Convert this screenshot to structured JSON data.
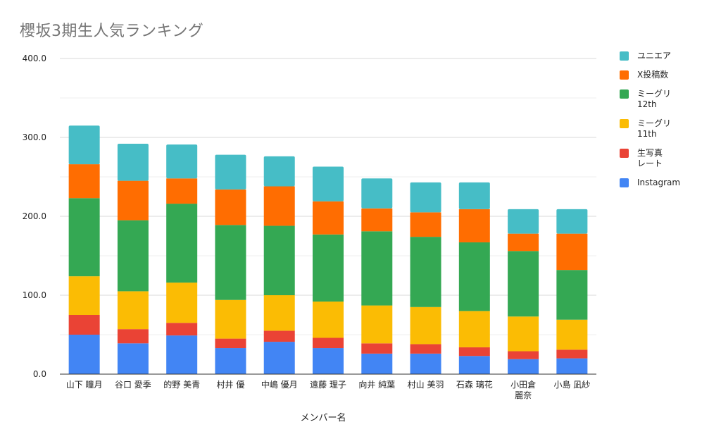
{
  "chart_data": {
    "type": "bar",
    "stacked": true,
    "title": "櫻坂3期生人気ランキング",
    "xlabel": "メンバー名",
    "ylabel": "",
    "ylim": [
      0,
      400
    ],
    "yticks": [
      "0.0",
      "100.0",
      "200.0",
      "300.0",
      "400.0"
    ],
    "grid": true,
    "legend_position": "right",
    "categories": [
      "山下 瞳月",
      "谷口 愛季",
      "的野 美青",
      "村井 優",
      "中嶋 優月",
      "遠藤 理子",
      "向井 純葉",
      "村山 美羽",
      "石森 璃花",
      "小田倉\n麗奈",
      "小島 凪紗"
    ],
    "series": [
      {
        "name": "Instagram",
        "color": "#4285f4",
        "values": [
          50,
          39,
          49,
          33,
          41,
          33,
          26,
          26,
          23,
          19,
          20
        ]
      },
      {
        "name": "生写真\nレート",
        "color": "#ea4335",
        "values": [
          25,
          18,
          16,
          12,
          14,
          13,
          13,
          12,
          11,
          10,
          11
        ]
      },
      {
        "name": "ミーグリ\n11th",
        "color": "#fbbc04",
        "values": [
          49,
          48,
          51,
          49,
          45,
          46,
          48,
          47,
          46,
          44,
          38
        ]
      },
      {
        "name": "ミーグリ\n12th",
        "color": "#34a853",
        "values": [
          99,
          90,
          100,
          95,
          88,
          85,
          94,
          89,
          87,
          83,
          63
        ]
      },
      {
        "name": "X投稿数",
        "color": "#ff6d01",
        "values": [
          43,
          50,
          32,
          45,
          50,
          42,
          29,
          31,
          42,
          22,
          46
        ]
      },
      {
        "name": "ユニエア",
        "color": "#46bdc6",
        "values": [
          49,
          47,
          43,
          44,
          38,
          44,
          38,
          38,
          34,
          31,
          31
        ]
      }
    ]
  }
}
